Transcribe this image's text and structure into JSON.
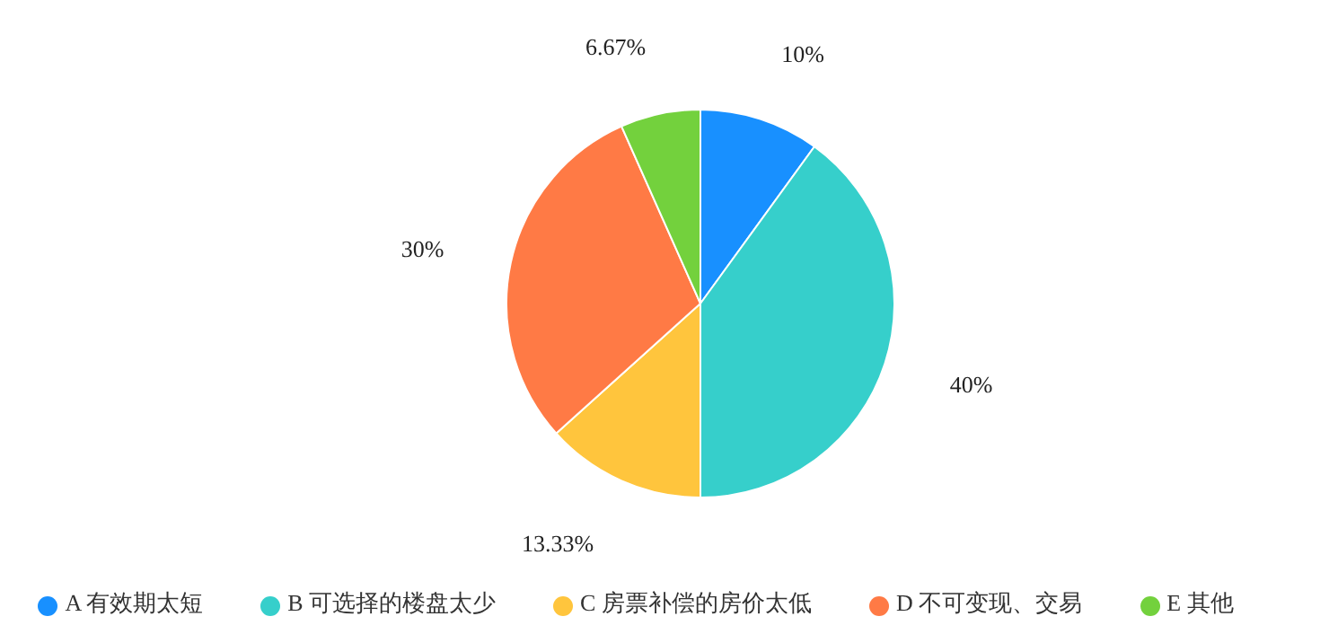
{
  "chart_data": {
    "type": "pie",
    "categories": [
      "A 有效期太短",
      "B 可选择的楼盘太少",
      "C 房票补偿的房价太低",
      "D 不可变现、交易",
      "E 其他"
    ],
    "values": [
      10,
      40,
      13.33,
      30,
      6.67
    ],
    "colors": [
      "#1890ff",
      "#36cfcb",
      "#ffc53d",
      "#ff7a45",
      "#73d13d"
    ],
    "value_labels": [
      "10%",
      "40%",
      "13.33%",
      "30%",
      "6.67%"
    ],
    "legend": "bottom"
  }
}
